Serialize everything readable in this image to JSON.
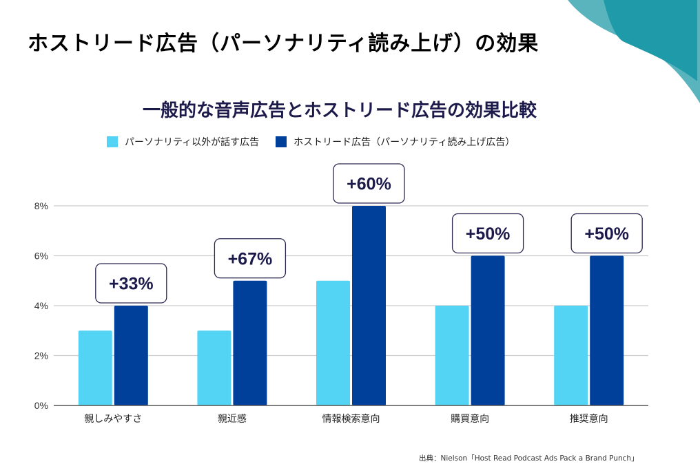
{
  "page": {
    "title": "ホストリード広告（パーソナリティ読み上げ）の効果",
    "source": "出典：Nielson「Host Read Podcast Ads Pack a Brand Punch」",
    "decoration": "teal-corner-shape"
  },
  "colors": {
    "series_light": "#54d4f5",
    "series_dark": "#003f9a",
    "title_text": "#1c1a4a",
    "callout_border": "#2a2850",
    "grid": "#cccccc",
    "axis": "#555555",
    "corner_teal_dark": "#1e9aa8",
    "corner_teal_light": "#5ab4be"
  },
  "chart_data": {
    "type": "bar",
    "title": "一般的な音声広告とホストリード広告の効果比較",
    "xlabel": "",
    "ylabel": "",
    "ylim": [
      0,
      8
    ],
    "yticks": [
      0,
      2,
      4,
      6,
      8
    ],
    "ytick_labels": [
      "0%",
      "2%",
      "4%",
      "6%",
      "8%"
    ],
    "grid": true,
    "legend_position": "top-left",
    "categories": [
      "親しみやすさ",
      "親近感",
      "情報検索意向",
      "購買意向",
      "推奨意向"
    ],
    "series": [
      {
        "name": "パーソナリティ以外が話す広告",
        "values": [
          3,
          3,
          5,
          4,
          4
        ],
        "unit": "%"
      },
      {
        "name": "ホストリード広告（パーソナリティ読み上げ広告）",
        "values": [
          4,
          5,
          8,
          6,
          6
        ],
        "unit": "%"
      }
    ],
    "annotations": [
      "+33%",
      "+67%",
      "+60%",
      "+50%",
      "+50%"
    ]
  }
}
